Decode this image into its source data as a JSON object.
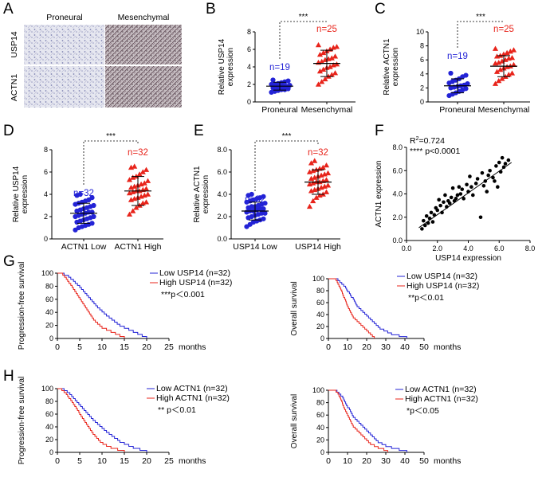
{
  "colors": {
    "blue": "#2323d6",
    "red": "#e8241b",
    "black": "#000000"
  },
  "panels": {
    "A": {
      "label": "A",
      "col_proneural": "Proneural",
      "col_mesenchymal": "Mesenchymal",
      "row_usp14": "USP14",
      "row_actn1": "ACTN1"
    },
    "B": {
      "label": "B",
      "sig": "***"
    },
    "C": {
      "label": "C",
      "sig": "***"
    },
    "D": {
      "label": "D",
      "sig": "***"
    },
    "E": {
      "label": "E",
      "sig": "***"
    },
    "F": {
      "label": "F",
      "r2_prefix": "R",
      "r2_sup": "2",
      "r2_value": "=0.724",
      "pval": "**** p<0.0001"
    },
    "G": {
      "label": "G"
    },
    "H": {
      "label": "H"
    }
  },
  "chart_data": [
    {
      "id": "B",
      "type": "scatter",
      "ylabel": "Relative USP14 expression",
      "ylim": [
        0,
        8
      ],
      "yticks": [
        "0",
        "2",
        "4",
        "6",
        "8"
      ],
      "groups": [
        {
          "name": "Proneural",
          "n_label": "n=19",
          "color": "#2323d6",
          "marker": "circle",
          "mean": 1.8,
          "sd": 0.45,
          "values": [
            1.1,
            1.2,
            1.3,
            1.4,
            1.4,
            1.5,
            1.6,
            1.7,
            1.7,
            1.8,
            1.8,
            1.9,
            2.0,
            2.0,
            2.1,
            2.2,
            2.3,
            2.4,
            2.5
          ]
        },
        {
          "name": "Mesenchymal",
          "n_label": "n=25",
          "color": "#e8241b",
          "marker": "triangle",
          "mean": 4.4,
          "sd": 1.5,
          "values": [
            2.0,
            2.3,
            2.6,
            2.9,
            3.1,
            3.3,
            3.5,
            3.7,
            3.9,
            4.0,
            4.2,
            4.3,
            4.5,
            4.6,
            4.8,
            4.9,
            5.0,
            5.2,
            5.4,
            5.6,
            5.8,
            6.0,
            6.2,
            6.3,
            6.5
          ]
        }
      ]
    },
    {
      "id": "C",
      "type": "scatter",
      "ylabel": "Relative ACTN1 expression",
      "ylim": [
        0,
        10
      ],
      "yticks": [
        "0",
        "2",
        "4",
        "6",
        "8",
        "10"
      ],
      "groups": [
        {
          "name": "Proneural",
          "n_label": "n=19",
          "color": "#2323d6",
          "marker": "circle",
          "mean": 2.3,
          "sd": 1.0,
          "values": [
            0.9,
            1.1,
            1.3,
            1.5,
            1.7,
            1.9,
            2.0,
            2.1,
            2.2,
            2.3,
            2.4,
            2.6,
            2.7,
            2.9,
            3.1,
            3.3,
            3.6,
            3.8,
            4.1
          ]
        },
        {
          "name": "Mesenchymal",
          "n_label": "n=25",
          "color": "#e8241b",
          "marker": "triangle",
          "mean": 5.1,
          "sd": 1.5,
          "values": [
            2.6,
            3.0,
            3.3,
            3.6,
            3.9,
            4.1,
            4.3,
            4.6,
            4.8,
            5.0,
            5.1,
            5.3,
            5.5,
            5.6,
            5.8,
            6.0,
            6.2,
            6.3,
            6.5,
            6.6,
            6.8,
            7.0,
            7.2,
            7.4,
            7.6
          ]
        }
      ]
    },
    {
      "id": "D",
      "type": "scatter",
      "ylabel": "Relative USP14 expression",
      "ylim": [
        0,
        8
      ],
      "yticks": [
        "0",
        "2",
        "4",
        "6",
        "8"
      ],
      "groups": [
        {
          "name": "ACTN1 Low",
          "n_label": "n=32",
          "color": "#2323d6",
          "marker": "circle",
          "mean": 2.3,
          "sd": 0.9,
          "values": [
            0.8,
            1.0,
            1.1,
            1.2,
            1.3,
            1.4,
            1.5,
            1.6,
            1.7,
            1.8,
            1.9,
            2.0,
            2.0,
            2.1,
            2.2,
            2.3,
            2.4,
            2.4,
            2.5,
            2.6,
            2.7,
            2.8,
            2.9,
            3.0,
            3.1,
            3.2,
            3.3,
            3.4,
            3.5,
            3.7,
            3.9,
            4.0
          ]
        },
        {
          "name": "ACTN1 High",
          "n_label": "n=32",
          "color": "#e8241b",
          "marker": "triangle",
          "mean": 4.3,
          "sd": 1.3,
          "values": [
            2.2,
            2.5,
            2.8,
            3.0,
            3.2,
            3.3,
            3.5,
            3.6,
            3.7,
            3.8,
            3.9,
            4.0,
            4.1,
            4.2,
            4.3,
            4.3,
            4.4,
            4.5,
            4.6,
            4.7,
            4.8,
            4.9,
            5.0,
            5.2,
            5.3,
            5.5,
            5.6,
            5.8,
            6.0,
            6.2,
            6.4,
            6.5
          ]
        }
      ]
    },
    {
      "id": "E",
      "type": "scatter",
      "ylabel": "Relative ACTN1 expression",
      "ylim": [
        0,
        8
      ],
      "yticks": [
        "0.0",
        "2.0",
        "4.0",
        "6.0",
        "8.0"
      ],
      "groups": [
        {
          "name": "USP14 Low",
          "n_label": "n=32",
          "color": "#2323d6",
          "marker": "circle",
          "mean": 2.5,
          "sd": 0.8,
          "values": [
            1.1,
            1.3,
            1.5,
            1.6,
            1.7,
            1.8,
            1.9,
            2.0,
            2.1,
            2.2,
            2.3,
            2.3,
            2.4,
            2.5,
            2.5,
            2.6,
            2.7,
            2.7,
            2.8,
            2.9,
            2.9,
            3.0,
            3.1,
            3.2,
            3.3,
            3.4,
            3.5,
            3.6,
            3.7,
            3.8,
            3.9,
            4.0
          ]
        },
        {
          "name": "USP14 High",
          "n_label": "n=32",
          "color": "#e8241b",
          "marker": "triangle",
          "mean": 5.1,
          "sd": 1.1,
          "values": [
            2.9,
            3.4,
            3.7,
            3.9,
            4.0,
            4.2,
            4.3,
            4.4,
            4.5,
            4.6,
            4.7,
            4.8,
            4.9,
            5.0,
            5.1,
            5.1,
            5.2,
            5.3,
            5.4,
            5.5,
            5.6,
            5.7,
            5.8,
            5.9,
            6.0,
            6.1,
            6.2,
            6.3,
            6.4,
            6.6,
            6.8,
            7.0
          ]
        }
      ]
    },
    {
      "id": "F",
      "type": "scatter",
      "xlabel": "USP14 expression",
      "ylabel": "ACTN1 expression",
      "xlim": [
        0,
        8
      ],
      "ylim": [
        0,
        8
      ],
      "xticks": [
        "0.0",
        "2.0",
        "4.0",
        "6.0",
        "8.0"
      ],
      "yticks": [
        "0.0",
        "2.0",
        "4.0",
        "6.0",
        "8.0"
      ],
      "fit": {
        "x": [
          0.8,
          6.8
        ],
        "y": [
          1.1,
          6.7
        ]
      },
      "points": [
        [
          1.0,
          1.0
        ],
        [
          1.1,
          1.7
        ],
        [
          1.2,
          1.3
        ],
        [
          1.3,
          2.1
        ],
        [
          1.4,
          1.5
        ],
        [
          1.5,
          1.9
        ],
        [
          1.6,
          2.4
        ],
        [
          1.7,
          1.6
        ],
        [
          1.8,
          2.2
        ],
        [
          1.9,
          2.8
        ],
        [
          2.0,
          2.6
        ],
        [
          2.1,
          3.5
        ],
        [
          2.2,
          3.0
        ],
        [
          2.3,
          2.4
        ],
        [
          2.4,
          3.3
        ],
        [
          2.5,
          3.9
        ],
        [
          2.6,
          2.9
        ],
        [
          2.7,
          3.4
        ],
        [
          2.8,
          3.2
        ],
        [
          2.9,
          3.7
        ],
        [
          3.0,
          4.5
        ],
        [
          3.1,
          3.4
        ],
        [
          3.2,
          3.6
        ],
        [
          3.3,
          3.9
        ],
        [
          3.4,
          4.6
        ],
        [
          3.5,
          4.0
        ],
        [
          3.6,
          4.4
        ],
        [
          3.7,
          3.6
        ],
        [
          3.9,
          4.8
        ],
        [
          4.0,
          4.2
        ],
        [
          4.1,
          5.5
        ],
        [
          4.2,
          4.6
        ],
        [
          4.3,
          3.9
        ],
        [
          4.5,
          4.9
        ],
        [
          4.6,
          5.3
        ],
        [
          4.8,
          2.0
        ],
        [
          4.9,
          5.8
        ],
        [
          5.0,
          4.7
        ],
        [
          5.1,
          5.1
        ],
        [
          5.2,
          4.2
        ],
        [
          5.3,
          5.6
        ],
        [
          5.4,
          6.0
        ],
        [
          5.6,
          5.4
        ],
        [
          5.7,
          5.1
        ],
        [
          5.8,
          6.4
        ],
        [
          5.9,
          4.6
        ],
        [
          6.0,
          6.7
        ],
        [
          6.1,
          5.9
        ],
        [
          6.2,
          7.1
        ],
        [
          6.3,
          6.3
        ],
        [
          6.4,
          6.6
        ],
        [
          6.6,
          6.9
        ]
      ]
    },
    {
      "id": "G1",
      "type": "line",
      "ylabel": "Progression-free survival",
      "xunit": "months",
      "xlim": [
        0,
        25
      ],
      "ylim": [
        0,
        100
      ],
      "xticks": [
        "0",
        "5",
        "10",
        "15",
        "20",
        "25"
      ],
      "yticks": [
        "0",
        "20",
        "40",
        "60",
        "80",
        "100"
      ],
      "legend": [
        "Low USP14 (n=32)",
        "High USP14 (n=32)"
      ],
      "pval": "***p<0.001",
      "series": [
        {
          "name": "Low USP14 (n=32)",
          "color": "#2323d6",
          "times": [
            1.5,
            2.5,
            3.0,
            3.6,
            4.0,
            4.5,
            5.0,
            5.4,
            5.8,
            6.2,
            6.6,
            7.0,
            7.4,
            7.8,
            8.2,
            8.6,
            9.0,
            9.5,
            10.0,
            10.5,
            11.0,
            11.6,
            12.2,
            12.8,
            13.4,
            14.0,
            15.0,
            16.0,
            17.0,
            18.0,
            19.0,
            20.0
          ]
        },
        {
          "name": "High USP14 (n=32)",
          "color": "#e8241b",
          "times": [
            1.2,
            1.6,
            2.0,
            2.3,
            2.6,
            3.0,
            3.3,
            3.6,
            3.9,
            4.2,
            4.5,
            4.8,
            5.1,
            5.4,
            5.7,
            6.0,
            6.3,
            6.6,
            6.9,
            7.2,
            7.5,
            7.8,
            8.1,
            8.5,
            9.0,
            9.5,
            10.0,
            11.0,
            12.0,
            13.0,
            14.0,
            15.0
          ]
        }
      ]
    },
    {
      "id": "G2",
      "type": "line",
      "ylabel": "Overall survival",
      "xunit": "months",
      "xlim": [
        0,
        50
      ],
      "ylim": [
        0,
        100
      ],
      "xticks": [
        "0",
        "10",
        "20",
        "30",
        "40",
        "50"
      ],
      "yticks": [
        "0",
        "20",
        "40",
        "60",
        "80",
        "100"
      ],
      "legend": [
        "Low USP14 (n=32)",
        "High USP14 (n=32)"
      ],
      "pval": "**p<0.01",
      "series": [
        {
          "name": "Low USP14 (n=32)",
          "color": "#2323d6",
          "times": [
            5.0,
            6.0,
            7.0,
            8.0,
            9.0,
            9.5,
            10.0,
            11.0,
            11.5,
            12.0,
            13.0,
            13.5,
            14.0,
            14.5,
            15.0,
            16.0,
            17.0,
            18.0,
            19.0,
            20.0,
            21.0,
            22.0,
            23.0,
            24.0,
            25.0,
            26.0,
            27.0,
            29.0,
            31.0,
            33.0,
            37.0,
            41.0
          ]
        },
        {
          "name": "High USP14 (n=32)",
          "color": "#e8241b",
          "times": [
            4.0,
            4.6,
            5.0,
            5.5,
            6.0,
            6.5,
            7.0,
            7.3,
            7.6,
            8.0,
            8.5,
            9.0,
            9.3,
            9.6,
            10.0,
            10.5,
            11.0,
            11.5,
            12.0,
            12.5,
            13.0,
            14.0,
            15.0,
            16.0,
            17.0,
            18.0,
            19.0,
            20.0,
            21.0,
            22.0,
            23.0,
            24.0
          ]
        }
      ]
    },
    {
      "id": "H1",
      "type": "line",
      "ylabel": "Progression-free survival",
      "xunit": "months",
      "xlim": [
        0,
        25
      ],
      "ylim": [
        0,
        100
      ],
      "xticks": [
        "0",
        "5",
        "10",
        "15",
        "20",
        "25"
      ],
      "yticks": [
        "0",
        "20",
        "40",
        "60",
        "80",
        "100"
      ],
      "legend": [
        "Low ACTN1 (n=32)",
        "High ACTN1 (n=32)"
      ],
      "pval": "** p<0.01",
      "series": [
        {
          "name": "Low ACTN1 (n=32)",
          "color": "#2323d6",
          "times": [
            1.5,
            2.2,
            2.8,
            3.2,
            3.6,
            4.0,
            4.4,
            4.8,
            5.2,
            5.6,
            6.0,
            6.4,
            6.8,
            7.2,
            7.6,
            8.0,
            8.5,
            9.0,
            9.5,
            10.0,
            10.5,
            11.0,
            11.6,
            12.2,
            12.8,
            13.5,
            14.0,
            15.0,
            16.0,
            17.0,
            18.5,
            20.0
          ]
        },
        {
          "name": "High ACTN1 (n=32)",
          "color": "#e8241b",
          "times": [
            1.0,
            1.5,
            2.0,
            2.3,
            2.6,
            3.0,
            3.3,
            3.6,
            3.9,
            4.2,
            4.5,
            4.8,
            5.0,
            5.3,
            5.6,
            5.9,
            6.2,
            6.5,
            6.8,
            7.1,
            7.4,
            7.7,
            8.0,
            8.4,
            8.8,
            9.2,
            9.6,
            10.2,
            11.0,
            12.0,
            13.5,
            15.0
          ]
        }
      ]
    },
    {
      "id": "H2",
      "type": "line",
      "ylabel": "Overall survival",
      "xunit": "months",
      "xlim": [
        0,
        50
      ],
      "ylim": [
        0,
        100
      ],
      "xticks": [
        "0",
        "10",
        "20",
        "30",
        "40",
        "50"
      ],
      "yticks": [
        "0",
        "20",
        "40",
        "60",
        "80",
        "100"
      ],
      "legend": [
        "Low ACTN1 (n=32)",
        "High ACTN1 (n=32)"
      ],
      "pval": "*p<0.05",
      "series": [
        {
          "name": "Low ACTN1 (n=32)",
          "color": "#2323d6",
          "times": [
            4.5,
            5.5,
            6.5,
            7.5,
            8.0,
            8.5,
            9.0,
            9.5,
            10.0,
            11.0,
            11.5,
            12.0,
            12.5,
            13.0,
            14.0,
            15.0,
            16.0,
            17.0,
            18.0,
            19.0,
            20.0,
            21.0,
            22.0,
            23.0,
            24.0,
            25.0,
            26.0,
            28.0,
            30.0,
            33.0,
            37.0,
            41.0
          ]
        },
        {
          "name": "High ACTN1 (n=32)",
          "color": "#e8241b",
          "times": [
            4.0,
            5.0,
            5.5,
            6.0,
            6.5,
            7.0,
            7.3,
            7.6,
            8.0,
            8.5,
            9.0,
            9.5,
            10.0,
            10.5,
            11.0,
            11.5,
            12.0,
            12.5,
            13.0,
            14.0,
            15.0,
            16.0,
            17.0,
            18.0,
            19.0,
            20.0,
            21.0,
            22.0,
            24.0,
            26.0,
            29.0,
            31.0
          ]
        }
      ]
    }
  ]
}
